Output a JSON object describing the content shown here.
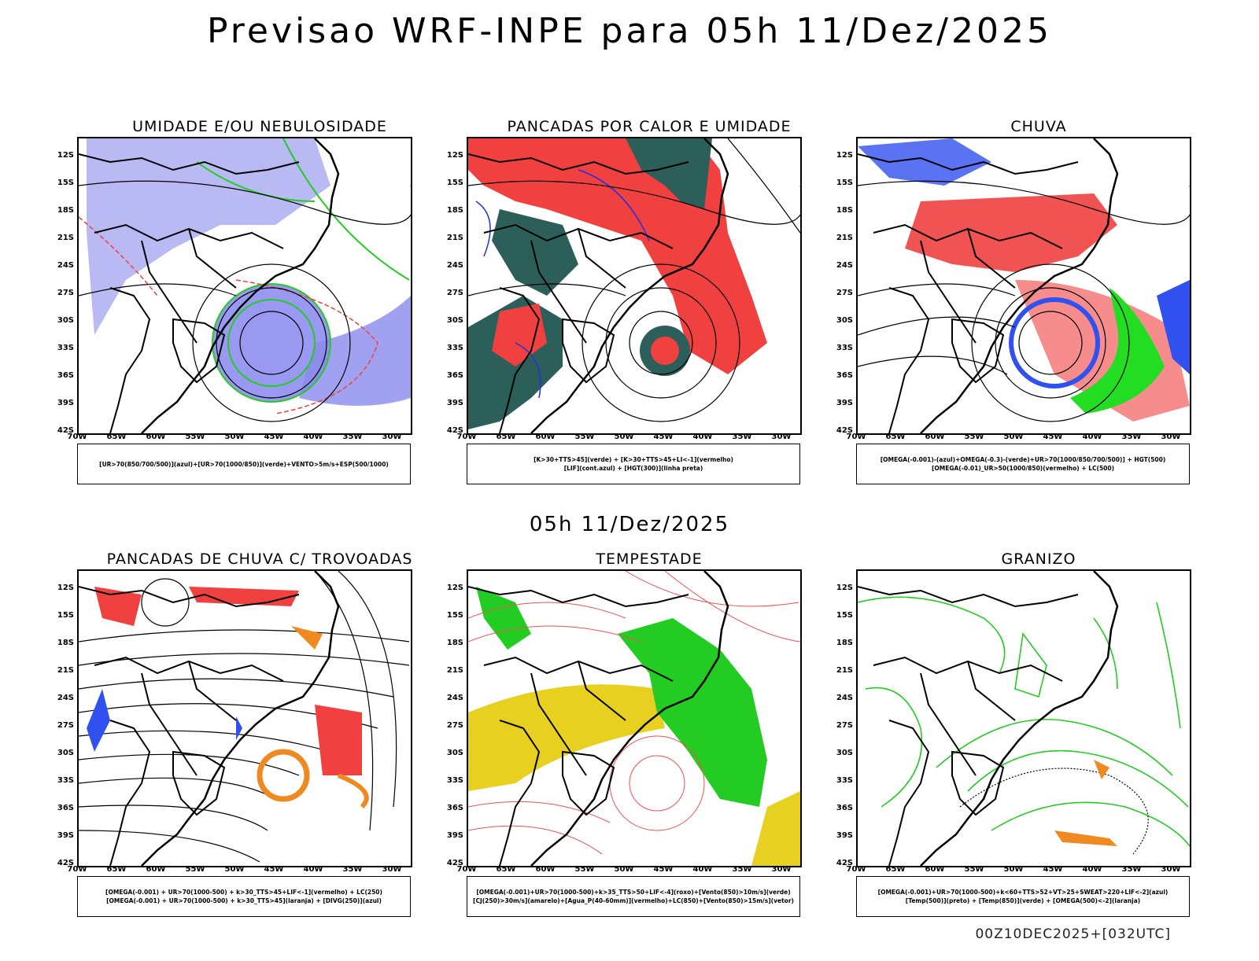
{
  "header": {
    "title": "Previsao WRF-INPE  para 05h 11/Dez/2025"
  },
  "subtitle": "05h 11/Dez/2025",
  "footer": "00Z10DEC2025+[032UTC]",
  "axes": {
    "lat_labels": [
      "12S",
      "15S",
      "18S",
      "21S",
      "24S",
      "27S",
      "30S",
      "33S",
      "36S",
      "39S",
      "42S"
    ],
    "lon_labels": [
      "70W",
      "65W",
      "60W",
      "55W",
      "50W",
      "45W",
      "40W",
      "35W",
      "30W"
    ]
  },
  "colors": {
    "blue": "#6a6af0",
    "green": "#22cc22",
    "red": "#f04040",
    "darkteal": "#2d5f5a",
    "orange": "#f08a20",
    "yellow": "#e8d020"
  },
  "panels": [
    {
      "title": "UMIDADE E/OU NEBULOSIDADE",
      "legend": [
        "[UR>70(850/700/500)](azul)+[UR>70(1000/850)](verde)+VENTO>5m/s+ESP(500/1000)"
      ]
    },
    {
      "title": "PANCADAS POR CALOR E UMIDADE",
      "legend": [
        "[K>30+TTS>45](verde)  +  [K>30+TTS>45+LI<-1](vermelho)",
        "[LIF](cont.azul)  +  [HGT(300)](linha preta)"
      ]
    },
    {
      "title": "CHUVA",
      "legend": [
        "[OMEGA(-0.001)-(azul)+OMEGA(-0.3)-(verde)+UR>70(1000/850/700/500)]  +  HGT(500)",
        "[OMEGA(-0.01)_UR>50(1000/850)(vermelho)  +  LC(500)"
      ]
    },
    {
      "title": "PANCADAS DE CHUVA C/ TROVOADAS",
      "legend": [
        "[OMEGA(-0.001)  +  UR>70(1000-500)  +  k>30_TTS>45+LIF<-1](vermelho)  +  LC(250)",
        "[OMEGA(-0.001)  +  UR>70(1000-500)  +  k>30_TTS>45](laranja)  +  [DIVG(250)](azul)"
      ]
    },
    {
      "title": "TEMPESTADE",
      "legend": [
        "[OMEGA(-0.001)+UR>70(1000-500)+k>35_TTS>50+LIF<-4](roxo)+[Vento(850)>10m/s](verde)",
        "[CJ(250)>30m/s](amarelo)+[Agua_P(40-60mm)](vermelho)+LC(850)+[Vento(850)>15m/s](vetor)"
      ]
    },
    {
      "title": "GRANIZO",
      "legend": [
        "[OMEGA(-0.001)+UR>70(1000-500)+k<60+TTS>52+VT>25+SWEAT>220+LIF<-2](azul)",
        "[Temp(500)](preto)  +  [Temp(850)](verde)  +  [OMEGA(500)<-2](laranja)"
      ]
    }
  ]
}
